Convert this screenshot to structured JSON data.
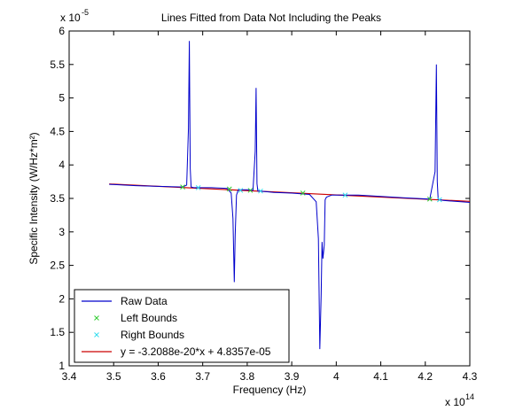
{
  "colors": {
    "raw": "#0000cc",
    "fit": "#cc0000",
    "left": "#33cc33",
    "right": "#33ddee"
  },
  "chart_data": {
    "type": "line",
    "title": "Lines Fitted from Data Not Including the Peaks",
    "xlabel": "Frequency (Hz)",
    "ylabel": "Specific Intensity (W/Hz*m²)",
    "x_exponent_label": "x 10",
    "x_exponent_power": "14",
    "y_exponent_label": "x 10",
    "y_exponent_power": "-5",
    "xlim": [
      3.4,
      4.3
    ],
    "ylim": [
      1.0,
      6.0
    ],
    "x_ticks": [
      "3.4",
      "3.5",
      "3.6",
      "3.7",
      "3.8",
      "3.9",
      "4",
      "4.1",
      "4.2",
      "4.3"
    ],
    "y_ticks": [
      "1",
      "1.5",
      "2",
      "2.5",
      "3",
      "3.5",
      "4",
      "4.5",
      "5",
      "5.5",
      "6"
    ],
    "legend_position": "bottom-left",
    "series": [
      {
        "name": "Raw Data",
        "type": "line",
        "x": [
          3.49,
          3.55,
          3.6,
          3.655,
          3.664,
          3.668,
          3.67,
          3.672,
          3.674,
          3.68,
          3.72,
          3.755,
          3.764,
          3.768,
          3.771,
          3.773,
          3.776,
          3.78,
          3.8,
          3.813,
          3.818,
          3.82,
          3.822,
          3.824,
          3.83,
          3.86,
          3.9,
          3.94,
          3.955,
          3.96,
          3.963,
          3.966,
          3.968,
          3.97,
          3.973,
          3.975,
          3.978,
          3.99,
          4.05,
          4.1,
          4.15,
          4.21,
          4.222,
          4.225,
          4.227,
          4.229,
          4.24,
          4.3
        ],
        "y": [
          3.71,
          3.69,
          3.68,
          3.67,
          3.7,
          4.55,
          5.85,
          3.95,
          3.67,
          3.66,
          3.66,
          3.65,
          3.58,
          3.2,
          2.25,
          2.95,
          3.55,
          3.63,
          3.63,
          3.62,
          4.2,
          5.15,
          3.72,
          3.61,
          3.61,
          3.59,
          3.58,
          3.56,
          3.45,
          2.9,
          1.25,
          2.05,
          2.85,
          2.6,
          2.8,
          3.48,
          3.52,
          3.55,
          3.55,
          3.53,
          3.51,
          3.49,
          3.9,
          5.5,
          3.75,
          3.49,
          3.47,
          3.44
        ]
      },
      {
        "name": "Left Bounds",
        "type": "scatter",
        "x": [
          3.655,
          3.76,
          3.807,
          3.925,
          4.21
        ],
        "y": [
          3.67,
          3.64,
          3.62,
          3.58,
          3.49
        ]
      },
      {
        "name": "Right Bounds",
        "type": "scatter",
        "x": [
          3.69,
          3.785,
          3.83,
          4.02,
          4.232
        ],
        "y": [
          3.66,
          3.62,
          3.61,
          3.55,
          3.48
        ]
      },
      {
        "name": "y = -3.2088e-20*x + 4.8357e-05",
        "type": "fit",
        "slope": -0.32088,
        "intercept": 4.8357,
        "x_range": [
          3.49,
          4.3
        ]
      }
    ]
  }
}
